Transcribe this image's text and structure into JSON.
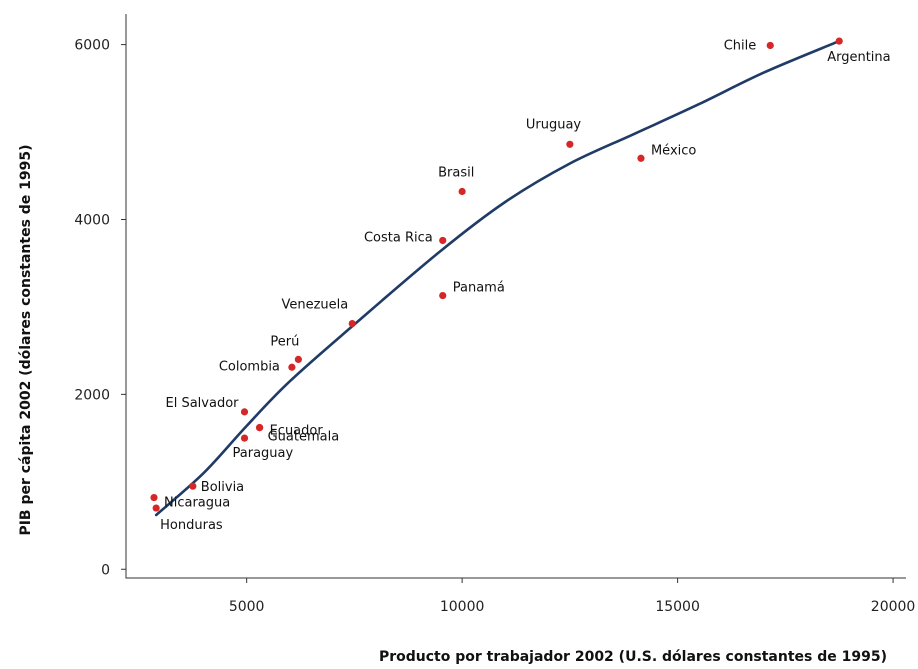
{
  "chart_data": {
    "type": "scatter",
    "xlabel": "Producto por trabajador 2002 (U.S. dólares constantes de 1995)",
    "ylabel": "PIB per cápita 2002 (dólares constantes de 1995)",
    "xlim": [
      2200,
      20300
    ],
    "ylim": [
      -100,
      6350
    ],
    "xticks": [
      5000,
      10000,
      15000,
      20000
    ],
    "yticks": [
      0,
      2000,
      4000,
      6000
    ],
    "xtick_labels": [
      "5000",
      "10000",
      "15000",
      "20000"
    ],
    "ytick_labels": [
      "0",
      "2000",
      "4000",
      "6000"
    ],
    "grid": false,
    "legend": "none",
    "colors": {
      "points": "#d62728",
      "trend": "#1f3b66",
      "axis": "#333333"
    },
    "points": [
      {
        "label": "Chile",
        "x": 17150,
        "y": 5990
      },
      {
        "label": "Argentina",
        "x": 18750,
        "y": 6040
      },
      {
        "label": "Uruguay",
        "x": 12500,
        "y": 4860
      },
      {
        "label": "México",
        "x": 14150,
        "y": 4700
      },
      {
        "label": "Brasil",
        "x": 10000,
        "y": 4320
      },
      {
        "label": "Costa Rica",
        "x": 9550,
        "y": 3760
      },
      {
        "label": "Panamá",
        "x": 9550,
        "y": 3130
      },
      {
        "label": "Venezuela",
        "x": 7450,
        "y": 2810
      },
      {
        "label": "Perú",
        "x": 6200,
        "y": 2400
      },
      {
        "label": "Colombia",
        "x": 6050,
        "y": 2310
      },
      {
        "label": "El Salvador",
        "x": 4950,
        "y": 1800
      },
      {
        "label": "Ecuador",
        "x": 5300,
        "y": 1620
      },
      {
        "label": "Guatemala",
        "x": 5300,
        "y": 1620
      },
      {
        "label": "Paraguay",
        "x": 4950,
        "y": 1500
      },
      {
        "label": "Bolivia",
        "x": 3750,
        "y": 950
      },
      {
        "label": "Nicaragua",
        "x": 2850,
        "y": 820
      },
      {
        "label": "Honduras",
        "x": 2900,
        "y": 700
      }
    ],
    "trend_line": [
      {
        "x": 2900,
        "y": 620
      },
      {
        "x": 4000,
        "y": 1100
      },
      {
        "x": 5000,
        "y": 1640
      },
      {
        "x": 6000,
        "y": 2150
      },
      {
        "x": 7500,
        "y": 2800
      },
      {
        "x": 9500,
        "y": 3640
      },
      {
        "x": 11000,
        "y": 4200
      },
      {
        "x": 12500,
        "y": 4640
      },
      {
        "x": 14000,
        "y": 4980
      },
      {
        "x": 15500,
        "y": 5320
      },
      {
        "x": 17000,
        "y": 5680
      },
      {
        "x": 18750,
        "y": 6040
      }
    ]
  }
}
